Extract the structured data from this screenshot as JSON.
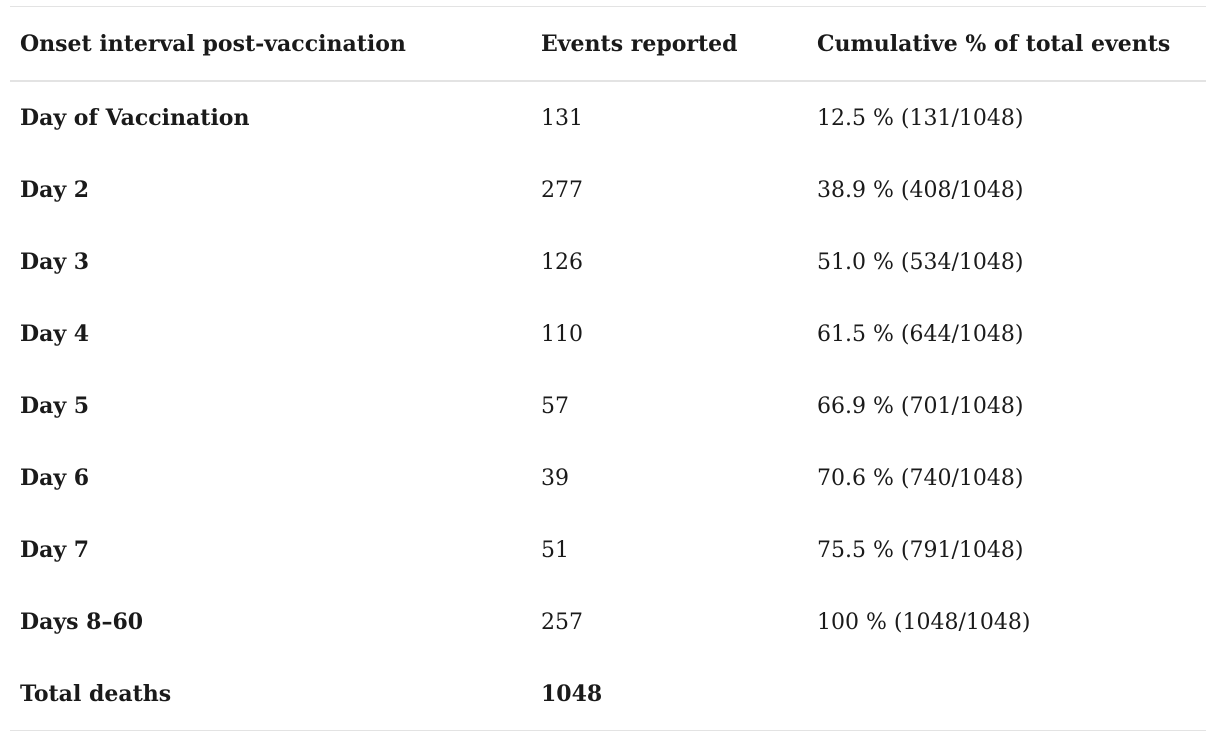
{
  "table": {
    "headers": [
      "Onset interval post-vaccination",
      "Events reported",
      "Cumulative % of total events"
    ],
    "rows": [
      {
        "interval": "Day of Vaccination",
        "events": "131",
        "cumulative": "12.5 % (131/1048)"
      },
      {
        "interval": "Day 2",
        "events": "277",
        "cumulative": "38.9 % (408/1048)"
      },
      {
        "interval": "Day 3",
        "events": "126",
        "cumulative": "51.0 % (534/1048)"
      },
      {
        "interval": "Day 4",
        "events": "110",
        "cumulative": "61.5 % (644/1048)"
      },
      {
        "interval": "Day 5",
        "events": "57",
        "cumulative": "66.9 % (701/1048)"
      },
      {
        "interval": "Day 6",
        "events": "39",
        "cumulative": "70.6 % (740/1048)"
      },
      {
        "interval": "Day 7",
        "events": "51",
        "cumulative": "75.5 % (791/1048)"
      },
      {
        "interval": "Days 8–60",
        "events": "257",
        "cumulative": "100 % (1048/1048)"
      },
      {
        "interval": "Total deaths",
        "events": "1048",
        "cumulative": ""
      }
    ]
  }
}
